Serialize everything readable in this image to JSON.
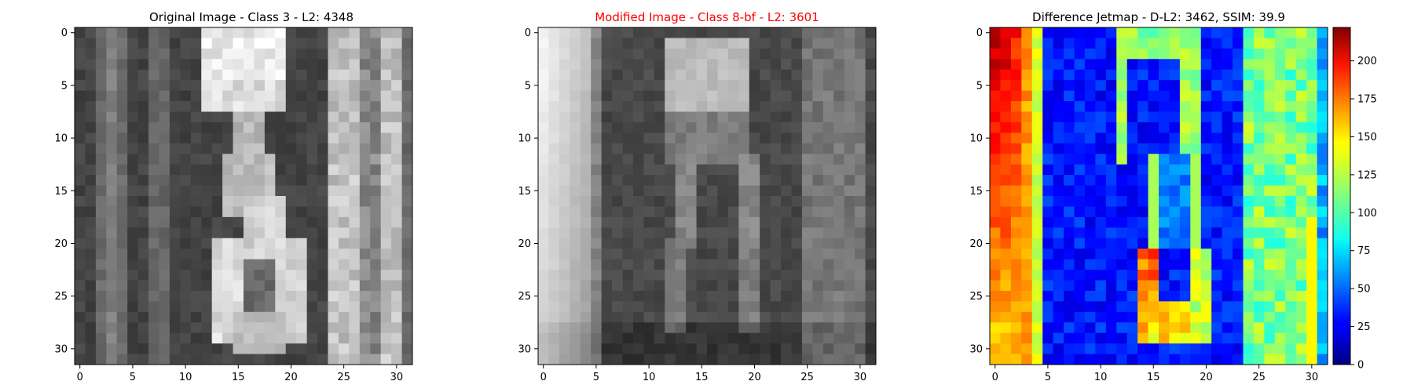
{
  "chart_data": [
    {
      "type": "heatmap",
      "title": "Original Image - Class 3 - L2: 4348",
      "title_color": "#000000",
      "colormap": "gray",
      "grid": false,
      "xticks": [
        0,
        5,
        10,
        15,
        20,
        25,
        30
      ],
      "yticks": [
        0,
        5,
        10,
        15,
        20,
        25,
        30
      ],
      "xlim": [
        -0.5,
        31.5
      ],
      "ylim": [
        31.5,
        -0.5
      ],
      "pixel_grid_size": [
        32,
        32
      ],
      "pixel_values": "32x32 grayscale digit image (handwritten '3' in street-number crop), rendered procedurally"
    },
    {
      "type": "heatmap",
      "title": "Modified Image - Class 8-bf - L2: 3601",
      "title_color": "#ff0000",
      "colormap": "gray",
      "grid": false,
      "xticks": [
        0,
        5,
        10,
        15,
        20,
        25,
        30
      ],
      "yticks": [
        0,
        5,
        10,
        15,
        20,
        25,
        30
      ],
      "xlim": [
        -0.5,
        31.5
      ],
      "ylim": [
        31.5,
        -0.5
      ],
      "pixel_grid_size": [
        32,
        32
      ]
    },
    {
      "type": "heatmap",
      "title": "Difference Jetmap - D-L2: 3462, SSIM: 39.9",
      "title_color": "#000000",
      "colormap": "jet",
      "grid": false,
      "xticks": [
        0,
        5,
        10,
        15,
        20,
        25,
        30
      ],
      "yticks": [
        0,
        5,
        10,
        15,
        20,
        25,
        30
      ],
      "xlim": [
        -0.5,
        31.5
      ],
      "ylim": [
        31.5,
        -0.5
      ],
      "pixel_grid_size": [
        32,
        32
      ],
      "colorbar": {
        "ticks": [
          0,
          25,
          50,
          75,
          100,
          125,
          150,
          175,
          200
        ],
        "range": [
          0,
          222
        ],
        "colormap": "jet"
      }
    }
  ]
}
